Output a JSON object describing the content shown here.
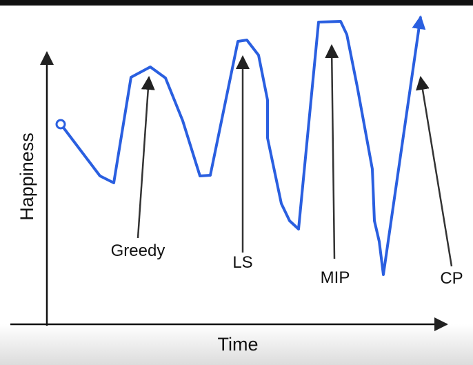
{
  "axes": {
    "y_label": "Happiness",
    "x_label": "Time"
  },
  "annotations": [
    {
      "label": "Greedy"
    },
    {
      "label": "LS"
    },
    {
      "label": "MIP"
    },
    {
      "label": "CP"
    }
  ]
}
